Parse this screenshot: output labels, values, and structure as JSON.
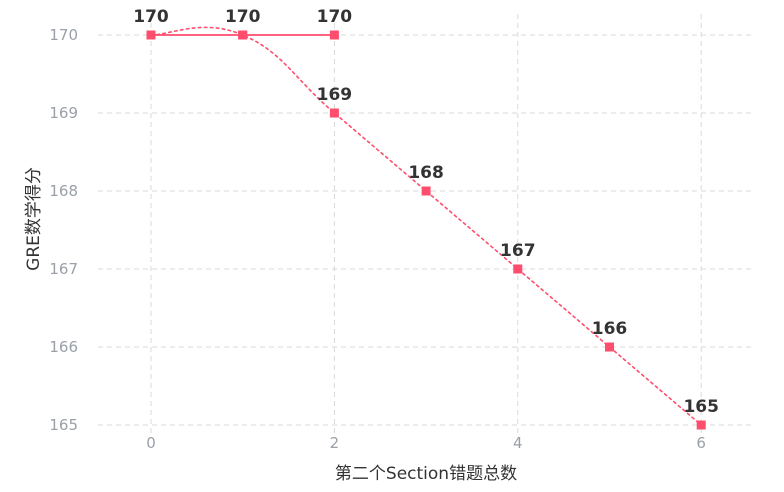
{
  "chart_data": {
    "type": "line",
    "xlabel": "第二个Section错题总数",
    "ylabel": "GRE数学得分",
    "xlim": [
      -0.5,
      6.5
    ],
    "ylim": [
      165,
      170
    ],
    "x_ticks": [
      "0",
      "2",
      "4",
      "6"
    ],
    "y_ticks": [
      "165",
      "166",
      "167",
      "168",
      "169",
      "170"
    ],
    "grid": true,
    "series": [
      {
        "style": "solid",
        "color": "#ff4d6d",
        "x": [
          0,
          1,
          2
        ],
        "values": [
          170,
          170,
          170
        ],
        "labels": [
          "170",
          "170",
          "170"
        ]
      },
      {
        "style": "dotted",
        "color": "#ff4d6d",
        "x": [
          0,
          1,
          2,
          3,
          4,
          5,
          6
        ],
        "values": [
          170,
          170,
          169,
          168,
          167,
          166,
          165
        ],
        "labels": [
          "",
          "",
          "169",
          "168",
          "167",
          "166",
          "165"
        ]
      }
    ]
  }
}
